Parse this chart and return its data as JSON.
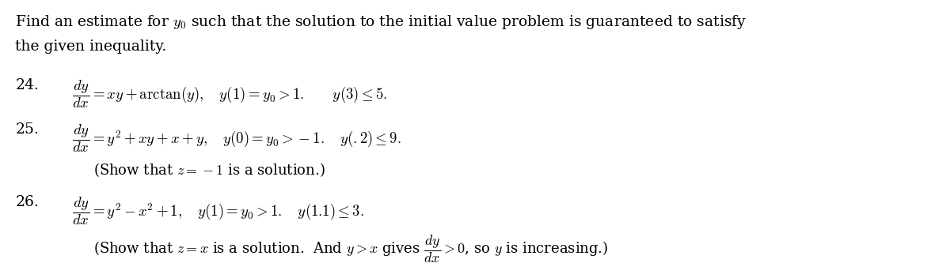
{
  "background_color": "#ffffff",
  "figsize": [
    12.0,
    3.38
  ],
  "dpi": 100,
  "header_line1": "Find an estimate for $y_0$ such that the solution to the initial value problem is guaranteed to satisfy",
  "header_line2": "the given inequality.",
  "items": [
    {
      "number": "24.",
      "line1": "$\\dfrac{dy}{dx} = xy + \\arctan(y), \\quad y(1) = y_0 > 1. \\qquad y(3) \\leq 5.$",
      "line2": null
    },
    {
      "number": "25.",
      "line1": "$\\dfrac{dy}{dx} = y^2 + xy + x + y, \\quad y(0) = y_0 > -1. \\quad y(.2) \\leq 9.$",
      "line2": "(Show that $z = -1$ is a solution.)"
    },
    {
      "number": "26.",
      "line1": "$\\dfrac{dy}{dx} = y^2 - x^2 + 1, \\quad y(1) = y_0 > 1. \\quad y(1.1) \\leq 3.$",
      "line2": "(Show that $z = x$ is a solution.  And $y > x$ gives $\\dfrac{dy}{dx} > 0$, so $y$ is increasing.)"
    }
  ],
  "font_size_header": 13.5,
  "font_size_number": 13.5,
  "font_size_line1": 13.5,
  "font_size_line2": 13.0,
  "text_color": "#000000",
  "font_family": "serif"
}
